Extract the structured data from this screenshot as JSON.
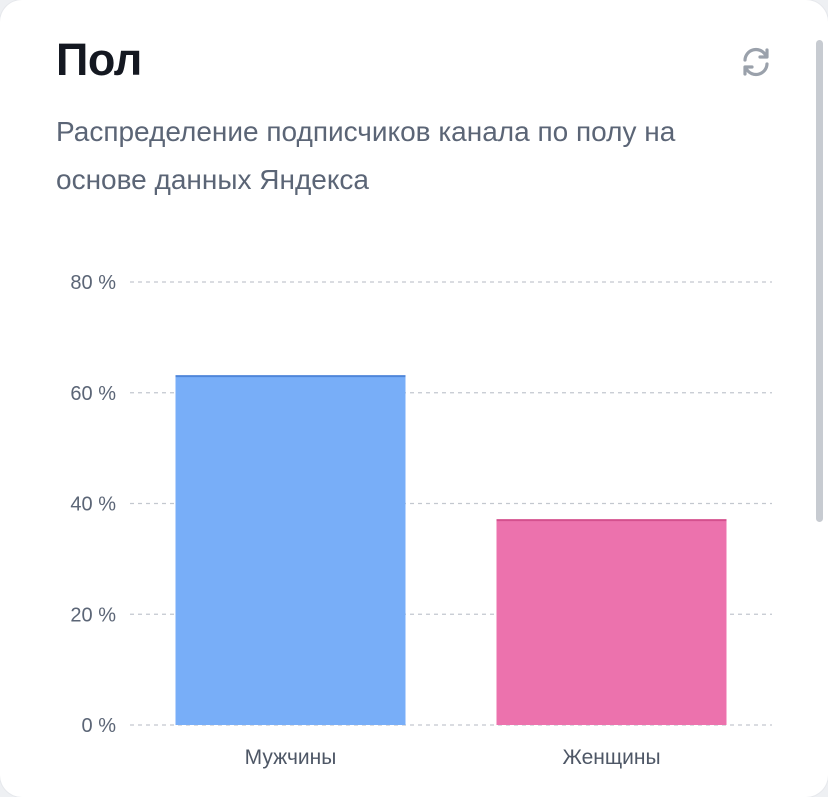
{
  "card": {
    "title": "Пол",
    "subtitle": "Распределение подписчиков канала по полу на основе данных Яндекса",
    "refresh_icon": "refresh-icon"
  },
  "colors": {
    "men": "#78aef8",
    "men_edge": "#4f86d9",
    "women": "#ec72ad",
    "women_edge": "#d4508e",
    "grid": "#c3c8cf"
  },
  "chart_data": {
    "type": "bar",
    "categories": [
      "Мужчины",
      "Женщины"
    ],
    "values": [
      63,
      37
    ],
    "unit": "%",
    "ylim": [
      0,
      80
    ],
    "yticks": [
      0,
      20,
      40,
      60,
      80
    ],
    "ytick_labels": [
      "0 %",
      "20 %",
      "40 %",
      "60 %",
      "80 %"
    ],
    "grid": true,
    "xlabel": "",
    "ylabel": ""
  }
}
